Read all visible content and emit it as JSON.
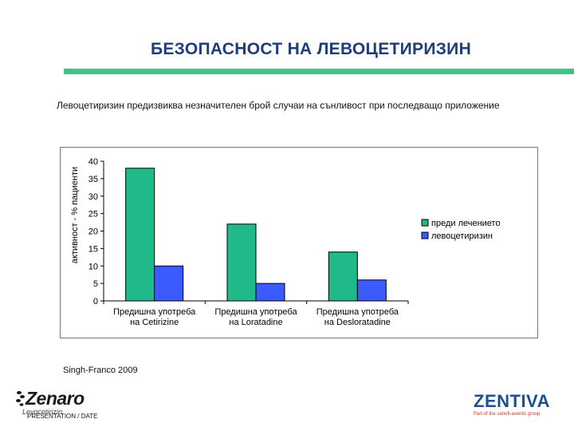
{
  "slide": {
    "title": "БЕЗОПАСНОСТ НА ЛЕВОЦЕТИРИЗИН",
    "subtitle": "Левоцетиризин предизвиква незначителен брой случаи на сънливост при последващо приложение",
    "source": "Singh-Franco 2009"
  },
  "footer": {
    "left_logo": "Zenaro",
    "left_logo_sub": "Levocetirizin",
    "left_text": "PRESENTATION / DATE",
    "right_logo": "ZENTIVA",
    "right_logo_sub": "Part of the sanofi-aventis group"
  },
  "colors": {
    "title": "#1f3d7a",
    "rule": "#3fc28e",
    "series_before": "#20b98a",
    "series_after": "#3b5bff"
  },
  "chart_data": {
    "type": "bar",
    "title": "",
    "xlabel": "",
    "ylabel": "активност - % пациенти",
    "ylim": [
      0,
      40
    ],
    "yticks": [
      0,
      5,
      10,
      15,
      20,
      25,
      30,
      35,
      40
    ],
    "grid": false,
    "legend_position": "right",
    "categories": [
      [
        "Предишна употреба",
        "на Cetirizine"
      ],
      [
        "Предишна употреба",
        "на Loratadine"
      ],
      [
        "Предишна употреба",
        "на Desloratadine"
      ]
    ],
    "series": [
      {
        "name": "преди лечението",
        "values": [
          38,
          22,
          14
        ]
      },
      {
        "name": "левоцетиризин",
        "values": [
          10,
          5,
          6
        ]
      }
    ]
  }
}
